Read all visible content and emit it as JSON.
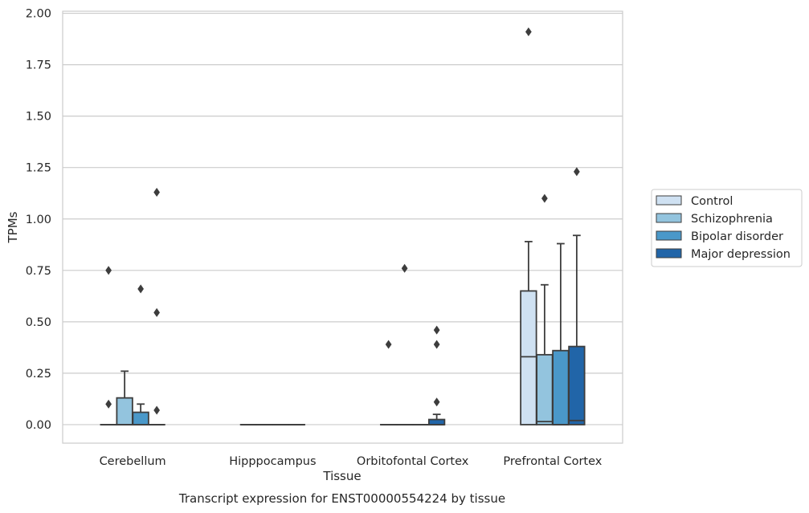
{
  "chart_data": {
    "type": "box",
    "title": "",
    "xlabel": "Tissue",
    "ylabel": "TPMs",
    "caption": "Transcript expression for ENST00000554224 by tissue",
    "ylim": [
      -0.09,
      2.01
    ],
    "yticks": [
      0.0,
      0.25,
      0.5,
      0.75,
      1.0,
      1.25,
      1.5,
      1.75,
      2.0
    ],
    "ytick_labels": [
      "0.00",
      "0.25",
      "0.50",
      "0.75",
      "1.00",
      "1.25",
      "1.50",
      "1.75",
      "2.00"
    ],
    "grid": "horizontal",
    "legend_position": "right",
    "categories": [
      "Cerebellum",
      "Hipppocampus",
      "Orbitofontal Cortex",
      "Prefrontal Cortex"
    ],
    "series": [
      {
        "name": "Control",
        "color": "#cfe1f2",
        "boxes": [
          {
            "q1": 0.0,
            "median": 0.0,
            "q3": 0.0,
            "whislo": 0.0,
            "whishi": 0.0,
            "fliers": [
              0.75,
              0.1
            ]
          },
          {
            "q1": 0.0,
            "median": 0.0,
            "q3": 0.0,
            "whislo": 0.0,
            "whishi": 0.0,
            "fliers": []
          },
          {
            "q1": 0.0,
            "median": 0.0,
            "q3": 0.0,
            "whislo": 0.0,
            "whishi": 0.0,
            "fliers": [
              0.39
            ]
          },
          {
            "q1": 0.0,
            "median": 0.33,
            "q3": 0.65,
            "whislo": 0.0,
            "whishi": 0.89,
            "fliers": [
              1.91
            ]
          }
        ]
      },
      {
        "name": "Schizophrenia",
        "color": "#93c4de",
        "boxes": [
          {
            "q1": 0.0,
            "median": 0.0,
            "q3": 0.13,
            "whislo": 0.0,
            "whishi": 0.26,
            "fliers": []
          },
          {
            "q1": 0.0,
            "median": 0.0,
            "q3": 0.0,
            "whislo": 0.0,
            "whishi": 0.0,
            "fliers": []
          },
          {
            "q1": 0.0,
            "median": 0.0,
            "q3": 0.0,
            "whislo": 0.0,
            "whishi": 0.0,
            "fliers": [
              0.76
            ]
          },
          {
            "q1": 0.0,
            "median": 0.015,
            "q3": 0.34,
            "whislo": 0.0,
            "whishi": 0.68,
            "fliers": [
              1.1
            ]
          }
        ]
      },
      {
        "name": "Bipolar disorder",
        "color": "#4a98c9",
        "boxes": [
          {
            "q1": 0.0,
            "median": 0.0,
            "q3": 0.06,
            "whislo": 0.0,
            "whishi": 0.1,
            "fliers": [
              0.66
            ]
          },
          {
            "q1": 0.0,
            "median": 0.0,
            "q3": 0.0,
            "whislo": 0.0,
            "whishi": 0.0,
            "fliers": []
          },
          {
            "q1": 0.0,
            "median": 0.0,
            "q3": 0.0,
            "whislo": 0.0,
            "whishi": 0.0,
            "fliers": []
          },
          {
            "q1": 0.0,
            "median": 0.0,
            "q3": 0.36,
            "whislo": 0.0,
            "whishi": 0.88,
            "fliers": []
          }
        ]
      },
      {
        "name": "Major depression",
        "color": "#2165a8",
        "boxes": [
          {
            "q1": 0.0,
            "median": 0.0,
            "q3": 0.0,
            "whislo": 0.0,
            "whishi": 0.0,
            "fliers": [
              1.13,
              0.545,
              0.07
            ]
          },
          {
            "q1": 0.0,
            "median": 0.0,
            "q3": 0.0,
            "whislo": 0.0,
            "whishi": 0.0,
            "fliers": []
          },
          {
            "q1": 0.0,
            "median": 0.0,
            "q3": 0.025,
            "whislo": 0.0,
            "whishi": 0.05,
            "fliers": [
              0.46,
              0.39,
              0.11
            ]
          },
          {
            "q1": 0.0,
            "median": 0.02,
            "q3": 0.38,
            "whislo": 0.0,
            "whishi": 0.92,
            "fliers": [
              1.23
            ]
          }
        ]
      }
    ]
  }
}
